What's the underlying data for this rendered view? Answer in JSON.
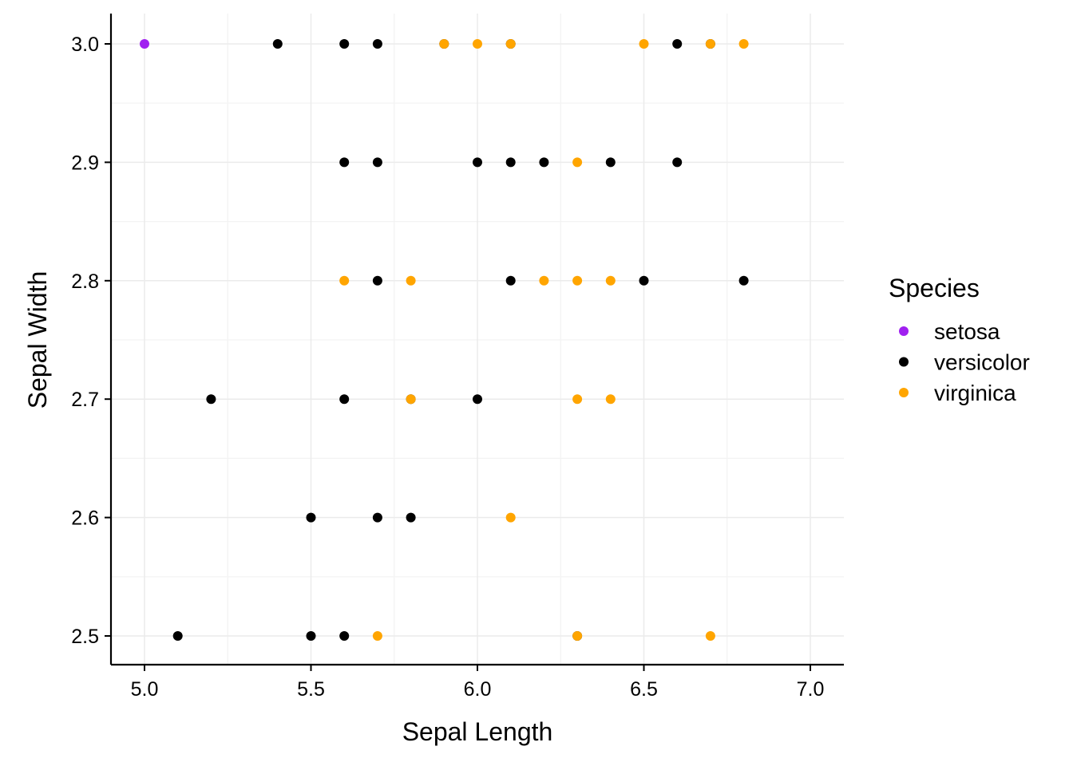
{
  "chart_data": {
    "type": "scatter",
    "xlabel": "Sepal Length",
    "ylabel": "Sepal Width",
    "xlim": [
      4.9,
      7.1
    ],
    "ylim": [
      2.475,
      3.025
    ],
    "xticks": [
      "5.0",
      "5.5",
      "6.0",
      "6.5",
      "7.0"
    ],
    "yticks": [
      "2.5",
      "2.6",
      "2.7",
      "2.8",
      "2.9",
      "3.0"
    ],
    "grid": true,
    "legend": {
      "title": "Species",
      "position": "right"
    },
    "series": [
      {
        "name": "setosa",
        "color": "#A020F0",
        "points": [
          [
            5.0,
            3.0
          ]
        ]
      },
      {
        "name": "versicolor",
        "color": "#000000",
        "points": [
          [
            5.4,
            3.0
          ],
          [
            5.6,
            3.0
          ],
          [
            5.7,
            3.0
          ],
          [
            5.9,
            3.0
          ],
          [
            6.1,
            3.0
          ],
          [
            6.6,
            3.0
          ],
          [
            6.7,
            3.0
          ],
          [
            5.6,
            2.9
          ],
          [
            5.7,
            2.9
          ],
          [
            6.0,
            2.9
          ],
          [
            6.1,
            2.9
          ],
          [
            6.2,
            2.9
          ],
          [
            6.4,
            2.9
          ],
          [
            6.6,
            2.9
          ],
          [
            5.7,
            2.8
          ],
          [
            6.1,
            2.8
          ],
          [
            6.5,
            2.8
          ],
          [
            6.8,
            2.8
          ],
          [
            5.2,
            2.7
          ],
          [
            5.6,
            2.7
          ],
          [
            5.8,
            2.7
          ],
          [
            6.0,
            2.7
          ],
          [
            5.5,
            2.6
          ],
          [
            5.7,
            2.6
          ],
          [
            5.8,
            2.6
          ],
          [
            5.1,
            2.5
          ],
          [
            5.5,
            2.5
          ],
          [
            5.6,
            2.5
          ],
          [
            6.3,
            2.5
          ]
        ]
      },
      {
        "name": "virginica",
        "color": "#FFA500",
        "points": [
          [
            5.9,
            3.0
          ],
          [
            6.0,
            3.0
          ],
          [
            6.1,
            3.0
          ],
          [
            6.5,
            3.0
          ],
          [
            6.7,
            3.0
          ],
          [
            6.8,
            3.0
          ],
          [
            6.3,
            2.9
          ],
          [
            5.6,
            2.8
          ],
          [
            5.8,
            2.8
          ],
          [
            6.2,
            2.8
          ],
          [
            6.3,
            2.8
          ],
          [
            6.4,
            2.8
          ],
          [
            5.8,
            2.7
          ],
          [
            6.3,
            2.7
          ],
          [
            6.4,
            2.7
          ],
          [
            6.1,
            2.6
          ],
          [
            5.7,
            2.5
          ],
          [
            6.3,
            2.5
          ],
          [
            6.7,
            2.5
          ]
        ]
      }
    ]
  }
}
